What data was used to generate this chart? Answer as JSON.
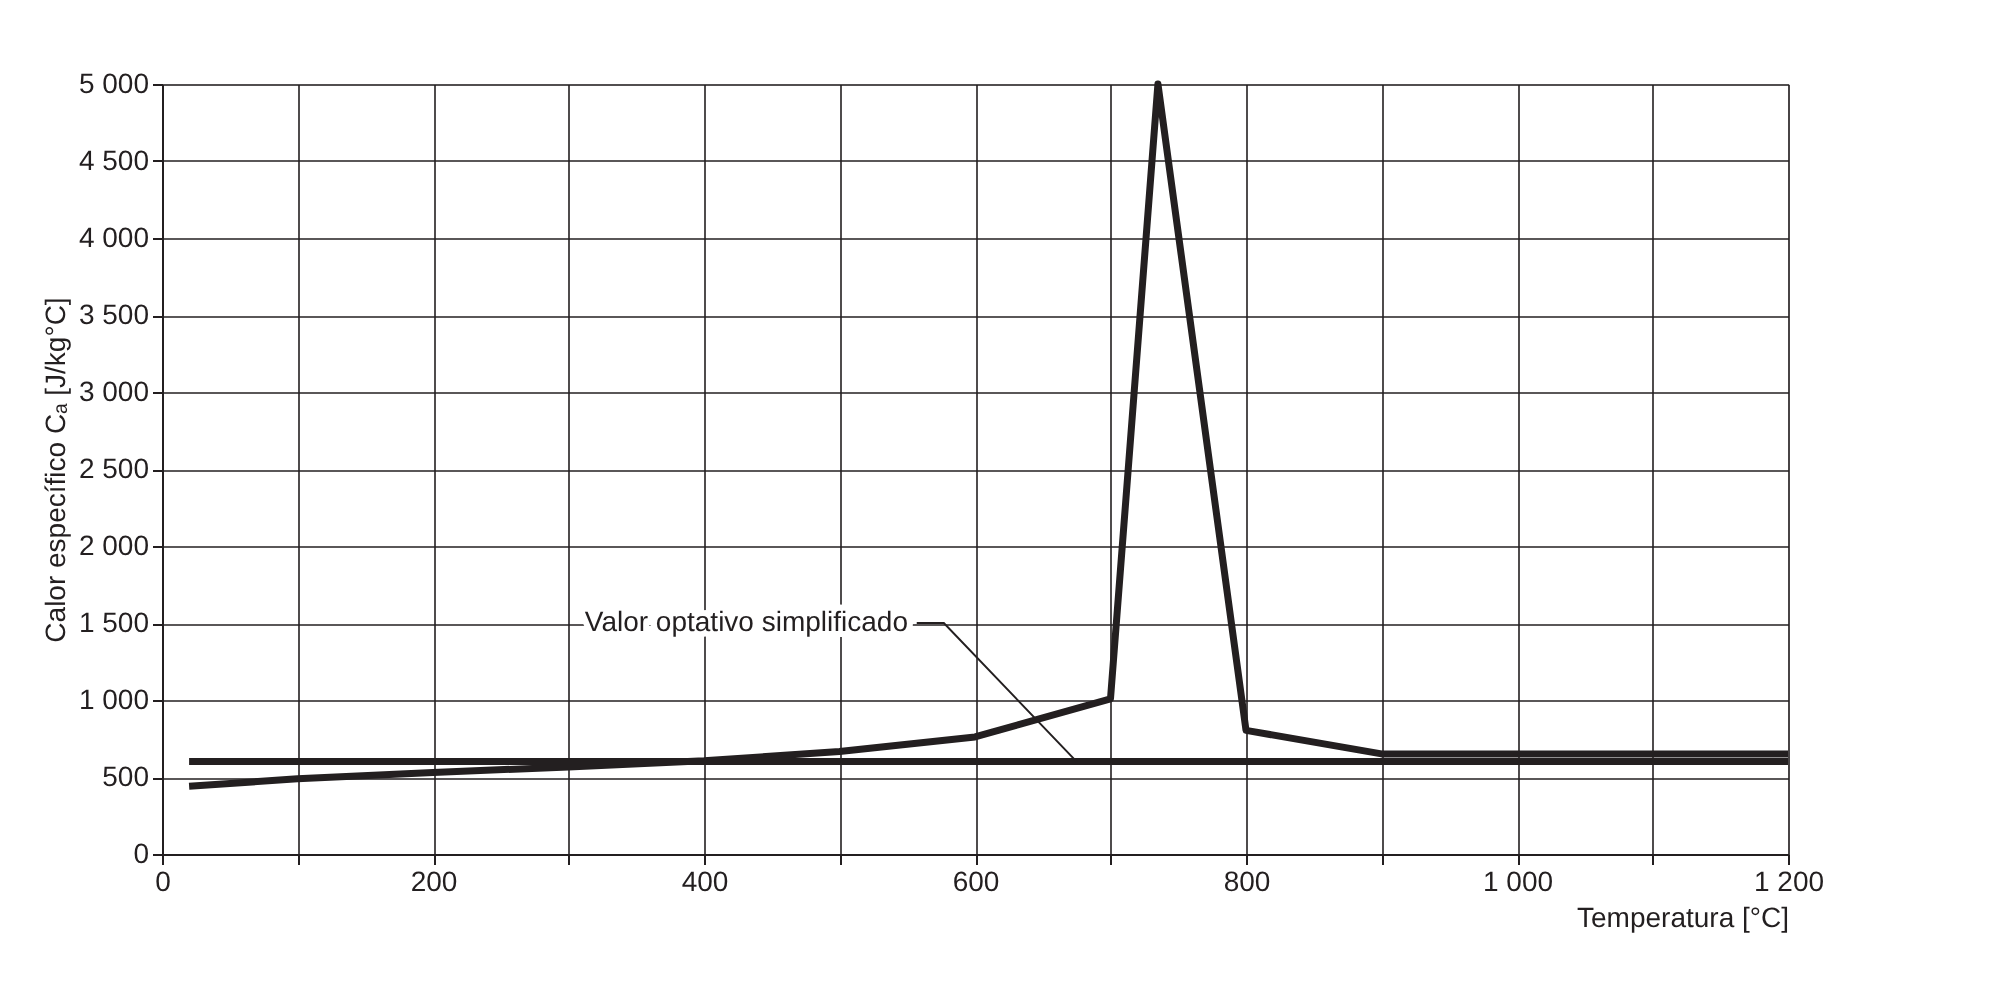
{
  "chart_data": {
    "type": "line",
    "xlabel": "Temperatura [°C]",
    "ylabel": "Calor específico Cₐ [J/kg°C]",
    "series": [
      {
        "color": "#231f20",
        "x": [
          20,
          100,
          200,
          300,
          400,
          500,
          600,
          700,
          735,
          800,
          900,
          1000,
          1100,
          1200
        ],
        "values": [
          440,
          488,
          530,
          565,
          605,
          666,
          760,
          1008,
          5000,
          803,
          650,
          650,
          650,
          650
        ]
      },
      {
        "color": "#231f20",
        "x": [
          20,
          1200
        ],
        "values": [
          600,
          600
        ]
      }
    ],
    "xlim": [
      0,
      1200
    ],
    "ylim": [
      0,
      5000
    ],
    "xticks": [
      0,
      {
        "value": 100,
        "label": null
      },
      200,
      {
        "value": 300,
        "label": null
      },
      400,
      {
        "value": 500,
        "label": null
      },
      600,
      {
        "value": 700,
        "label": null
      },
      800,
      {
        "value": 900,
        "label": null
      },
      {
        "value": 1000,
        "label": "1 000"
      },
      {
        "value": 1100,
        "label": null
      },
      {
        "value": 1200,
        "label": "1 200"
      }
    ],
    "yticks": [
      0,
      500,
      {
        "value": 1000,
        "label": "1 000"
      },
      {
        "value": 1500,
        "label": "1 500"
      },
      {
        "value": 2000,
        "label": "2 000"
      },
      {
        "value": 2500,
        "label": "2 500"
      },
      {
        "value": 3000,
        "label": "3 000"
      },
      {
        "value": 3500,
        "label": "3 500"
      },
      {
        "value": 4000,
        "label": "4 000"
      },
      {
        "value": 4500,
        "label": "4 500"
      },
      {
        "value": 5000,
        "label": "5 000"
      }
    ],
    "grid": true,
    "line_style": "solid",
    "marker": "none",
    "annotations": [
      {
        "text": "Valor optativo simplificado",
        "x": 675,
        "y": 600
      }
    ]
  }
}
